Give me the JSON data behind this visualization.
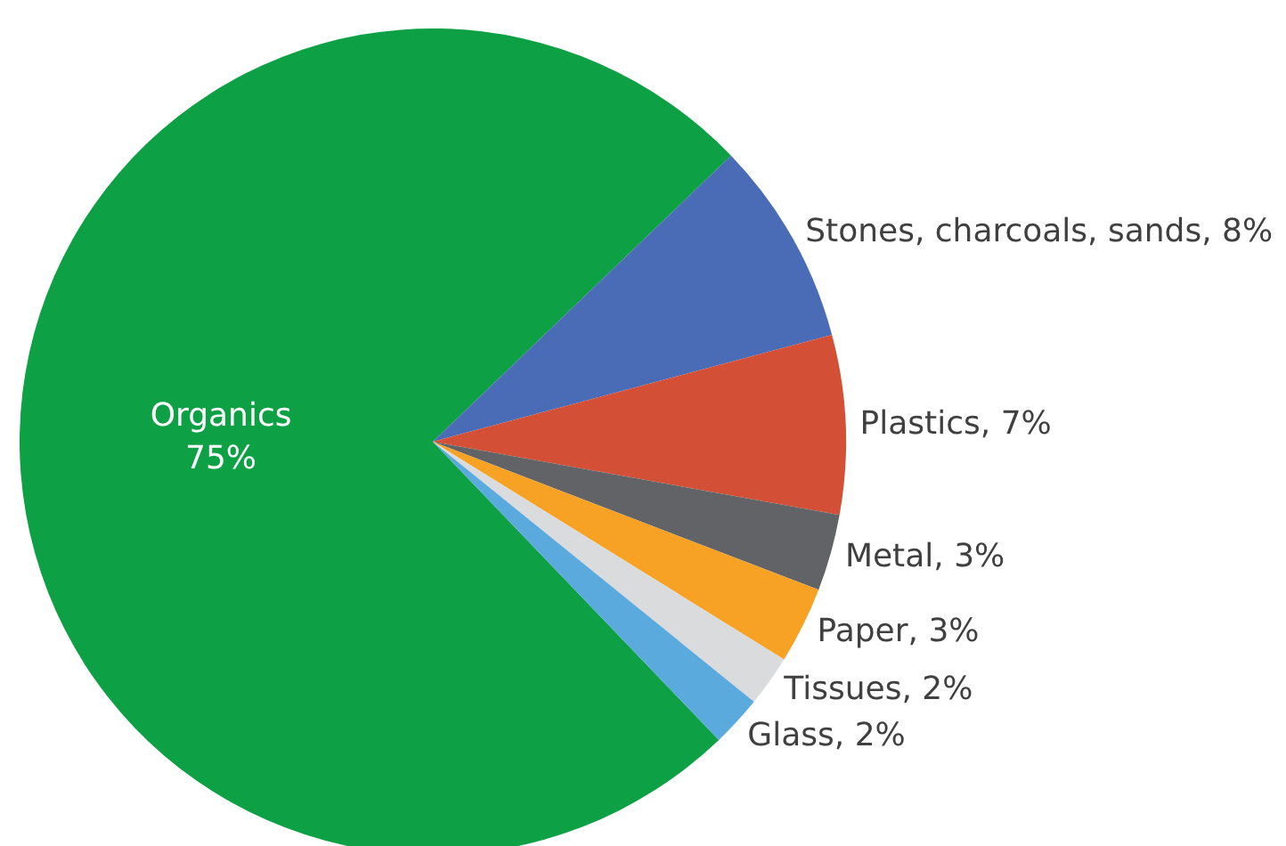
{
  "chart_data": {
    "type": "pie",
    "categories": [
      "Organics",
      "Stones, charcoals, sands",
      "Plastics",
      "Metal",
      "Paper",
      "Tissues",
      "Glass"
    ],
    "values": [
      75,
      8,
      7,
      3,
      3,
      2,
      2
    ],
    "colors": [
      "#0ea044",
      "#4a6bb5",
      "#d35037",
      "#626366",
      "#f7a125",
      "#d9dbdd",
      "#5aaade"
    ],
    "value_labels": [
      "75%",
      "8%",
      "7%",
      "3%",
      "3%",
      "2%",
      "2%"
    ],
    "legend": false
  }
}
